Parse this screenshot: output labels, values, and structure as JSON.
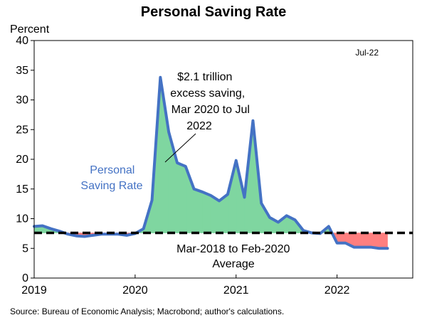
{
  "chart_data": {
    "type": "line",
    "title": "Personal Saving Rate",
    "ylabel": "Percent",
    "xlabel": "",
    "ylim": [
      0,
      40
    ],
    "yticks": [
      0,
      5,
      10,
      15,
      20,
      25,
      30,
      35,
      40
    ],
    "xlim": [
      2019.0,
      2022.75
    ],
    "xticks": [
      {
        "value": 2019,
        "label": "2019"
      },
      {
        "value": 2020,
        "label": "2020"
      },
      {
        "value": 2021,
        "label": "2021"
      },
      {
        "value": 2022,
        "label": "2022"
      }
    ],
    "average": 7.6,
    "series": [
      {
        "name": "Personal Saving Rate",
        "color": "#4472c4",
        "x": [
          2019.0,
          2019.083,
          2019.167,
          2019.25,
          2019.333,
          2019.417,
          2019.5,
          2019.583,
          2019.667,
          2019.75,
          2019.833,
          2019.917,
          2020.0,
          2020.083,
          2020.167,
          2020.25,
          2020.333,
          2020.417,
          2020.5,
          2020.583,
          2020.667,
          2020.75,
          2020.833,
          2020.917,
          2021.0,
          2021.083,
          2021.167,
          2021.25,
          2021.333,
          2021.417,
          2021.5,
          2021.583,
          2021.667,
          2021.75,
          2021.833,
          2021.917,
          2022.0,
          2022.083,
          2022.167,
          2022.25,
          2022.333,
          2022.417,
          2022.5
        ],
        "values": [
          8.7,
          8.8,
          8.3,
          7.9,
          7.4,
          7.1,
          7.0,
          7.2,
          7.4,
          7.4,
          7.4,
          7.2,
          7.5,
          8.3,
          13.1,
          33.8,
          24.6,
          19.4,
          18.8,
          15.0,
          14.5,
          13.9,
          13.0,
          14.1,
          19.8,
          13.6,
          26.5,
          12.6,
          10.2,
          9.4,
          10.5,
          9.8,
          8.0,
          7.6,
          7.5,
          8.7,
          5.9,
          5.9,
          5.2,
          5.2,
          5.2,
          5.0,
          5.0
        ]
      }
    ],
    "legend_label": "Personal Saving Rate",
    "annotations": {
      "excess": [
        "$2.1 trillion",
        "excess saving,",
        "Mar 2020 to Jul",
        "2022"
      ],
      "average": [
        "Mar-2018 to Feb-2020",
        "Average"
      ],
      "series_label": [
        "Personal",
        "Saving Rate"
      ],
      "date": "Jul-22"
    },
    "source": "Source: Bureau of Economic Analysis; Macrobond; author's calculations.",
    "fill_above_color": "#7fd6a0",
    "fill_below_color": "#ff7f7f"
  }
}
